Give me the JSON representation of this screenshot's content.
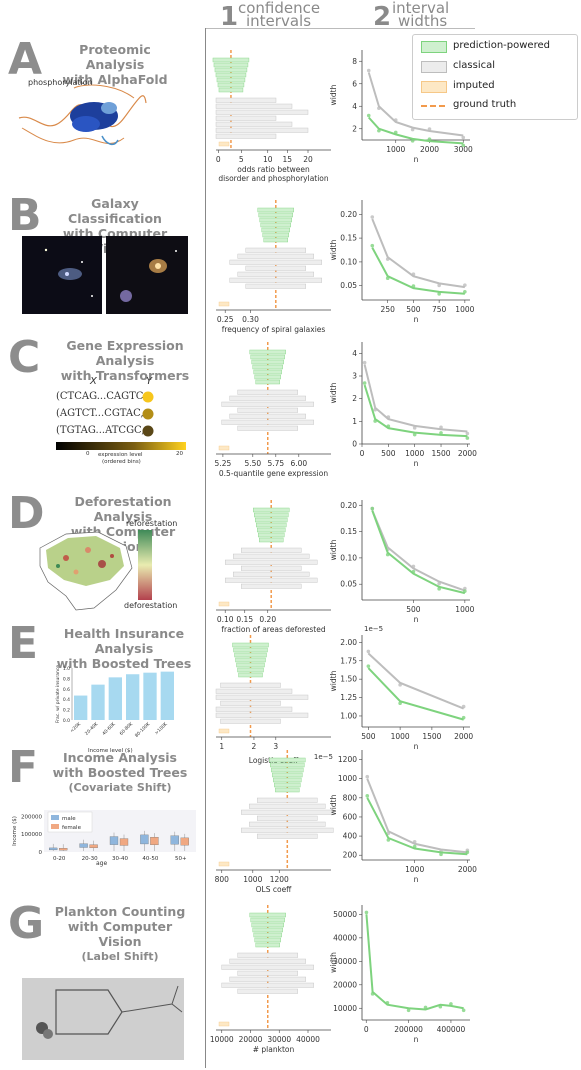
{
  "header": {
    "col1_num": "1",
    "col1_line1": "confidence",
    "col1_line2": "intervals",
    "col2_num": "2",
    "col2_line1": "interval",
    "col2_line2": "widths"
  },
  "legend": {
    "items": [
      "prediction-powered",
      "classical",
      "imputed",
      "ground truth"
    ],
    "colors": {
      "ppi": "#7ed37e",
      "classical": "#bdbdbd",
      "imputed": "#f6c888",
      "truth": "#f29a4c"
    }
  },
  "panels": [
    {
      "letter": "A",
      "title1": "Proteomic Analysis",
      "title2": "with AlphaFold",
      "title3": "",
      "ci_xlabel": "odds ratio between\ndisorder and phosphorylation",
      "ci_xticks": [
        "0",
        "5",
        "10",
        "15",
        "20"
      ],
      "w_xticks": [
        "1000",
        "2000",
        "3000"
      ],
      "w_yticks": [
        "2",
        "4",
        "6",
        "8"
      ],
      "w_xlabel": "n",
      "w_ylabel": "width",
      "exp": ""
    },
    {
      "letter": "B",
      "title1": "Galaxy Classification",
      "title2": "with Computer Vision",
      "title3": "",
      "ci_xlabel": "frequency of spiral galaxies",
      "ci_xticks": [
        "0.25",
        "0.30"
      ],
      "w_xticks": [
        "250",
        "500",
        "750",
        "1000"
      ],
      "w_yticks": [
        "0.05",
        "0.10",
        "0.15",
        "0.20"
      ],
      "w_xlabel": "n",
      "w_ylabel": "width",
      "exp": ""
    },
    {
      "letter": "C",
      "title1": "Gene Expression Analysis",
      "title2": "with Transformers",
      "title3": "",
      "ci_xlabel": "0.5-quantile gene expression",
      "ci_xticks": [
        "5.25",
        "5.50",
        "5.75",
        "6.00"
      ],
      "w_xticks": [
        "0",
        "500",
        "1000",
        "1500",
        "2000"
      ],
      "w_yticks": [
        "0",
        "1",
        "2",
        "3",
        "4"
      ],
      "w_xlabel": "n",
      "w_ylabel": "width",
      "exp": ""
    },
    {
      "letter": "D",
      "title1": "Deforestation Analysis",
      "title2": "with Computer Vision",
      "title3": "",
      "ci_xlabel": "fraction of areas deforested",
      "ci_xticks": [
        "0.10",
        "0.15",
        "0.20"
      ],
      "w_xticks": [
        "500",
        "1000"
      ],
      "w_yticks": [
        "0.05",
        "0.10",
        "0.15",
        "0.20"
      ],
      "w_xlabel": "n",
      "w_ylabel": "width",
      "exp": ""
    },
    {
      "letter": "E",
      "title1": "Health Insurance Analysis",
      "title2": "with Boosted Trees",
      "title3": "",
      "ci_xlabel": "Logistic coeff",
      "ci_xticks": [
        "1",
        "2",
        "3"
      ],
      "ci_exp": "1e−5",
      "w_xticks": [
        "500",
        "1000",
        "1500",
        "2000"
      ],
      "w_yticks": [
        "1.00",
        "1.25",
        "1.50",
        "1.75",
        "2.00"
      ],
      "w_xlabel": "n",
      "w_ylabel": "width",
      "exp": "1e−5"
    },
    {
      "letter": "F",
      "title1": "Income Analysis",
      "title2": "with Boosted Trees",
      "title3": "(Covariate Shift)",
      "ci_xlabel": "OLS coeff",
      "ci_xticks": [
        "800",
        "1000",
        "1200"
      ],
      "w_xticks": [
        "1000",
        "2000"
      ],
      "w_yticks": [
        "200",
        "400",
        "600",
        "800",
        "1000",
        "1200"
      ],
      "w_xlabel": "n",
      "w_ylabel": "width",
      "exp": ""
    },
    {
      "letter": "G",
      "title1": "Plankton Counting",
      "title2": "with Computer Vision",
      "title3": "(Label Shift)",
      "ci_xlabel": "# plankton",
      "ci_xticks": [
        "10000",
        "20000",
        "30000",
        "40000"
      ],
      "w_xticks": [
        "0",
        "200000",
        "400000"
      ],
      "w_yticks": [
        "10000",
        "20000",
        "30000",
        "40000",
        "50000"
      ],
      "w_xlabel": "n",
      "w_ylabel": "width",
      "exp": ""
    }
  ],
  "illustrations": {
    "a_label": "phosphorylation",
    "c_x": "X",
    "c_y": "Y",
    "c_seqs": [
      "(CTCAG...CAGTC,",
      "(AGTCT...CGTAC,",
      "(TGTAG...ATCGC,"
    ],
    "c_bar_min": "0",
    "c_bar_max": "20",
    "c_bar_label1": "expression level",
    "c_bar_label2": "(ordered bins)",
    "d_top": "reforestation",
    "d_bottom": "deforestation",
    "e_ylabel": "Frac. w/ private insurance",
    "e_ticks": [
      "0.0",
      "0.2",
      "0.4",
      "0.6",
      "0.8",
      "1.0"
    ],
    "e_cats": [
      "<20K",
      "20-40K",
      "40-60K",
      "60-80K",
      "80-100K",
      ">100K"
    ],
    "e_values": [
      0.47,
      0.68,
      0.82,
      0.88,
      0.91,
      0.93
    ],
    "e_xlabel": "Income level ($)",
    "f_ylabel": "Income ($)",
    "f_yticks": [
      "0",
      "100000",
      "200000"
    ],
    "f_cats": [
      "0-20",
      "20-30",
      "30-40",
      "40-50",
      "50+"
    ],
    "f_xlabel": "age",
    "f_legend": [
      "male",
      "female"
    ]
  },
  "chart_data": [
    {
      "panel": "A",
      "type": "line",
      "xlabel": "n",
      "ylabel": "width",
      "x": [
        200,
        500,
        1000,
        1500,
        2000,
        3000
      ],
      "series": [
        {
          "name": "prediction-powered",
          "values": [
            3.0,
            2.0,
            1.5,
            1.1,
            0.9,
            0.7
          ]
        },
        {
          "name": "classical",
          "values": [
            7.0,
            4.0,
            2.6,
            2.1,
            1.8,
            1.4
          ]
        }
      ]
    },
    {
      "panel": "B",
      "type": "line",
      "xlabel": "n",
      "ylabel": "width",
      "x": [
        100,
        250,
        500,
        750,
        1000
      ],
      "series": [
        {
          "name": "prediction-powered",
          "values": [
            0.13,
            0.07,
            0.045,
            0.037,
            0.033
          ]
        },
        {
          "name": "classical",
          "values": [
            0.19,
            0.11,
            0.07,
            0.055,
            0.047
          ]
        }
      ]
    },
    {
      "panel": "C",
      "type": "line",
      "xlabel": "n",
      "ylabel": "width",
      "x": [
        50,
        250,
        500,
        1000,
        1500,
        2000
      ],
      "series": [
        {
          "name": "prediction-powered",
          "values": [
            2.6,
            1.1,
            0.7,
            0.5,
            0.4,
            0.35
          ]
        },
        {
          "name": "classical",
          "values": [
            3.5,
            1.6,
            1.1,
            0.8,
            0.65,
            0.55
          ]
        }
      ]
    },
    {
      "panel": "D",
      "type": "line",
      "xlabel": "n",
      "ylabel": "width",
      "x": [
        100,
        250,
        500,
        750,
        1000
      ],
      "series": [
        {
          "name": "prediction-powered",
          "values": [
            0.19,
            0.11,
            0.07,
            0.045,
            0.033
          ]
        },
        {
          "name": "classical",
          "values": [
            0.19,
            0.12,
            0.08,
            0.055,
            0.038
          ]
        }
      ]
    },
    {
      "panel": "E",
      "type": "line",
      "xlabel": "n",
      "ylabel": "width",
      "x": [
        500,
        1000,
        2000
      ],
      "series": [
        {
          "name": "prediction-powered",
          "values": [
            1.65,
            1.2,
            0.95
          ]
        },
        {
          "name": "classical",
          "values": [
            1.85,
            1.45,
            1.1
          ]
        }
      ]
    },
    {
      "panel": "F",
      "type": "line",
      "xlabel": "n",
      "ylabel": "width",
      "x": [
        100,
        500,
        1000,
        1500,
        2000
      ],
      "series": [
        {
          "name": "prediction-powered",
          "values": [
            800,
            380,
            270,
            230,
            210
          ]
        },
        {
          "name": "classical",
          "values": [
            1000,
            450,
            320,
            260,
            230
          ]
        }
      ]
    },
    {
      "panel": "G",
      "type": "line",
      "xlabel": "n",
      "ylabel": "width",
      "x": [
        1000,
        30000,
        100000,
        200000,
        280000,
        350000,
        400000,
        460000
      ],
      "series": [
        {
          "name": "prediction-powered",
          "values": [
            50000,
            17000,
            11500,
            10000,
            9500,
            11500,
            11000,
            10000
          ]
        }
      ]
    }
  ]
}
